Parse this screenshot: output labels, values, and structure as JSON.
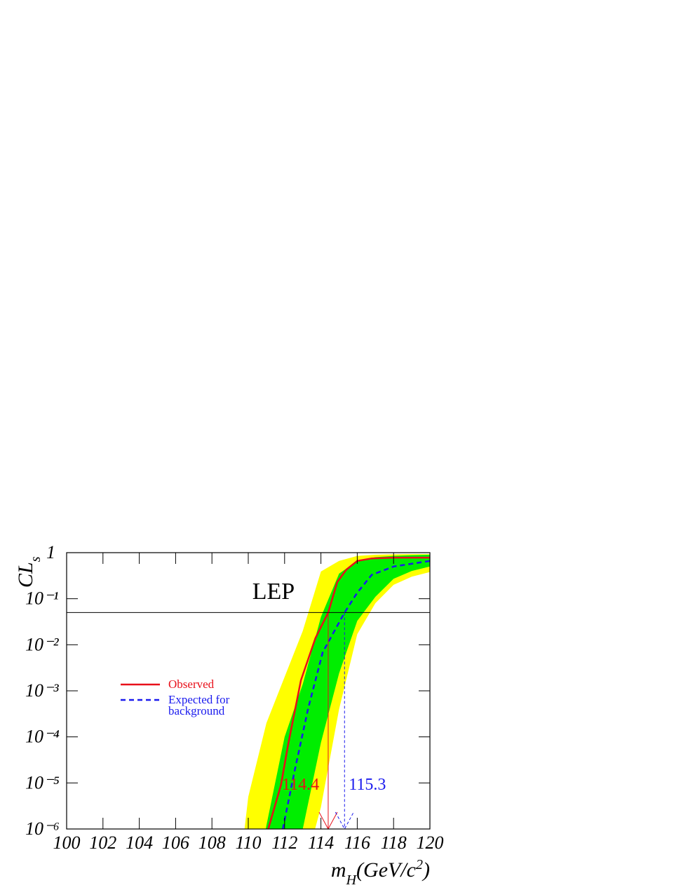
{
  "chart_data": {
    "type": "line",
    "y_label": [
      {
        "text": "CL",
        "shift": "none"
      },
      {
        "text": "s",
        "shift": "sub"
      }
    ],
    "x_label": [
      {
        "text": "m",
        "shift": "none"
      },
      {
        "text": "H",
        "shift": "sub"
      },
      {
        "text": "(GeV/c",
        "shift": "none"
      },
      {
        "text": "2",
        "shift": "super"
      },
      {
        "text": ")",
        "shift": "none"
      }
    ],
    "xlim": [
      100,
      120
    ],
    "xticks": [
      100,
      102,
      104,
      106,
      108,
      110,
      112,
      114,
      116,
      118,
      120
    ],
    "ylim": [
      1e-06,
      1
    ],
    "y_scale": "log",
    "yticks": [
      {
        "value": 1e-06,
        "label": "10⁻⁶"
      },
      {
        "value": 1e-05,
        "label": "10⁻⁵"
      },
      {
        "value": 0.0001,
        "label": "10⁻⁴"
      },
      {
        "value": 0.001,
        "label": "10⁻³"
      },
      {
        "value": 0.01,
        "label": "10⁻²"
      },
      {
        "value": 0.1,
        "label": "10⁻¹"
      },
      1
    ],
    "bands": [
      {
        "color": "#ffff00",
        "x": [
          109.5,
          110,
          111,
          112,
          113,
          114,
          115,
          116,
          117,
          118,
          119,
          120
        ],
        "upper": [
          1e-07,
          5e-06,
          0.0002,
          0.002,
          0.02,
          0.39,
          0.66,
          0.85,
          0.9,
          0.92,
          0.93,
          0.93
        ],
        "lower": [
          1e-07,
          1e-07,
          1e-07,
          1e-07,
          1e-07,
          3e-06,
          0.0004,
          0.017,
          0.08,
          0.2,
          0.3,
          0.38
        ]
      },
      {
        "color": "#00ee00",
        "x": [
          110.5,
          111,
          112,
          113,
          114,
          115,
          116,
          117,
          118,
          119,
          120
        ],
        "upper": [
          1e-07,
          1.2e-06,
          0.0001,
          0.0014,
          0.04,
          0.35,
          0.66,
          0.8,
          0.85,
          0.88,
          0.9
        ],
        "lower": [
          1e-07,
          1e-07,
          1e-07,
          1e-06,
          7.5e-05,
          0.0024,
          0.033,
          0.11,
          0.27,
          0.4,
          0.5
        ]
      }
    ],
    "series": [
      {
        "name": "Observed",
        "color": "#e8101a",
        "style": "solid",
        "x": [
          111.1,
          111.8,
          112.2,
          112.9,
          113.7,
          114.4,
          114.9,
          115.4,
          116,
          116.8,
          118,
          120
        ],
        "values": [
          1e-06,
          9e-06,
          7e-05,
          0.0017,
          0.014,
          0.05,
          0.23,
          0.43,
          0.66,
          0.75,
          0.78,
          0.78
        ]
      },
      {
        "name": "Expected for background",
        "color": "#1a1aee",
        "style": "dashed",
        "x": [
          111.9,
          112.55,
          113.3,
          114.1,
          115.3,
          116,
          116.8,
          118,
          120
        ],
        "values": [
          1e-06,
          1.8e-05,
          0.00042,
          0.0069,
          0.05,
          0.135,
          0.33,
          0.5,
          0.66
        ]
      }
    ],
    "reference_line": 0.05,
    "limits": [
      {
        "value": 114.4,
        "color": "#e8101a",
        "style": "solid"
      },
      {
        "value": 115.3,
        "color": "#1a1aee",
        "style": "dashed"
      }
    ],
    "annotation": "LEP",
    "legend": "center-left"
  }
}
